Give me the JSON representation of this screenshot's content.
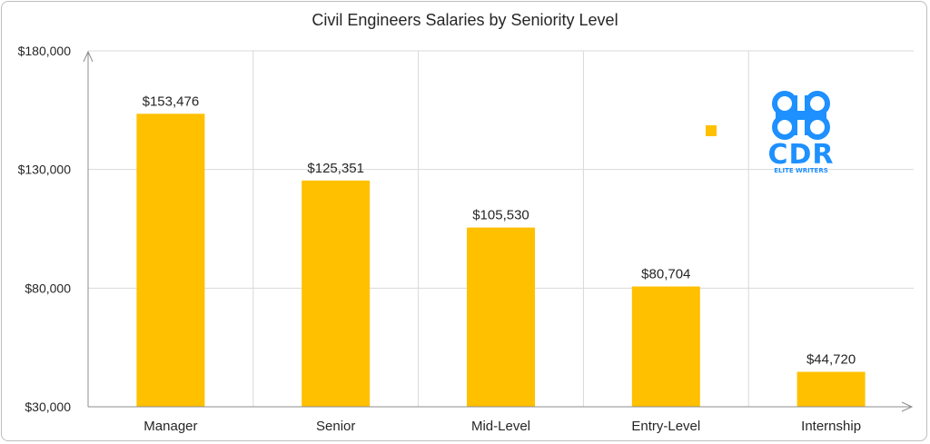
{
  "chart_data": {
    "type": "bar",
    "title": "Civil Engineers Salaries by Seniority Level",
    "categories": [
      "Manager",
      "Senior",
      "Mid-Level",
      "Entry-Level",
      "Internship"
    ],
    "values": [
      153476,
      125351,
      105530,
      80704,
      44720
    ],
    "value_labels": [
      "$153,476",
      "$125,351",
      "$105,530",
      "$80,704",
      "$44,720"
    ],
    "ylim": [
      30000,
      180000
    ],
    "yticks": [
      30000,
      80000,
      130000,
      180000
    ],
    "ytick_labels": [
      "$30,000",
      "$80,000",
      "$130,000",
      "$180,000"
    ],
    "xlabel": "",
    "ylabel": "",
    "grid": true,
    "legend_marker_color": "#FFC000",
    "bar_color": "#FFC000"
  },
  "logo": {
    "text": "CDR",
    "subtext": "ELITE WRITERS",
    "color": "#1E90FF"
  }
}
